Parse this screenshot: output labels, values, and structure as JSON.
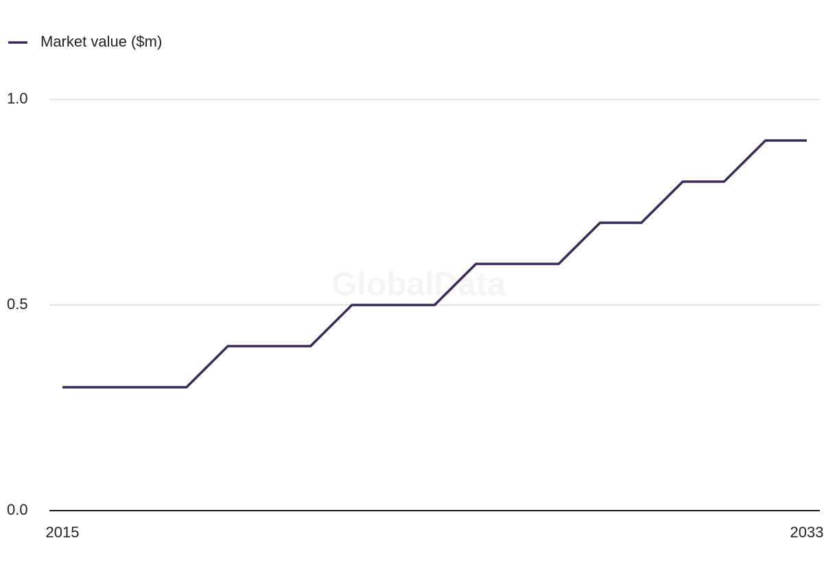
{
  "chart_data": {
    "type": "line",
    "watermark": "GlobalData",
    "x": [
      2015,
      2016,
      2017,
      2018,
      2019,
      2020,
      2021,
      2022,
      2023,
      2024,
      2025,
      2026,
      2027,
      2028,
      2029,
      2030,
      2031,
      2032,
      2033
    ],
    "series": [
      {
        "name": "Market value ($m)",
        "color": "#3a2856",
        "values": [
          0.3,
          0.3,
          0.3,
          0.3,
          0.4,
          0.4,
          0.4,
          0.5,
          0.5,
          0.5,
          0.6,
          0.6,
          0.6,
          0.7,
          0.7,
          0.8,
          0.8,
          0.9,
          0.9
        ]
      }
    ],
    "xlim": [
      2015,
      2033
    ],
    "xticks": [
      2015,
      2033
    ],
    "ylim": [
      0,
      1
    ],
    "yticks": [
      {
        "value": 0,
        "label": "0.0"
      },
      0.5,
      {
        "value": 1,
        "label": "1.0"
      }
    ],
    "grid": true,
    "legend": "top-left"
  }
}
